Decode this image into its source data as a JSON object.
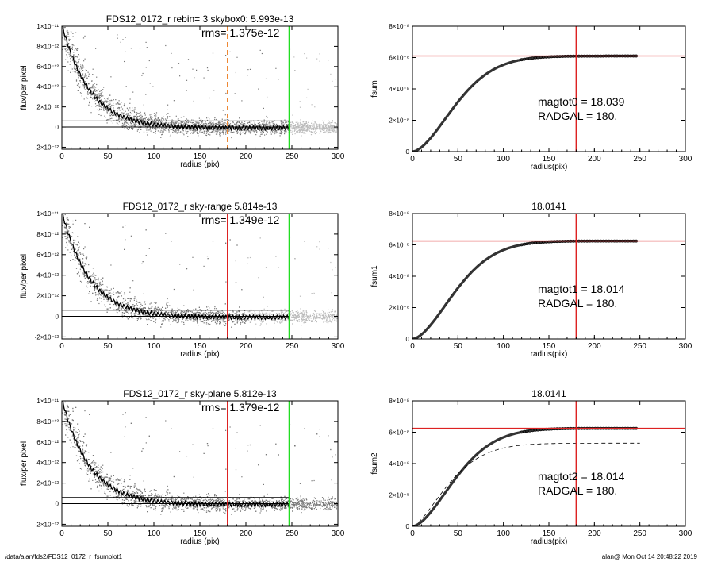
{
  "footer": {
    "left": "/data/alan/fds2/FDS12_0172_r_fsumplot1",
    "right": "alan@  Mon Oct 14 20:48:22 2019"
  },
  "colors": {
    "red": "#dd2222",
    "green": "#22dd22",
    "orange": "#ee8833",
    "points_dark": "#777777",
    "points_light": "#bbbbbb"
  },
  "chart_data": [
    {
      "type": "scatter",
      "title": "FDS12_0172_r rebin= 3    skybox0:  5.993e-13",
      "annotation": "rms= 1.375e-12",
      "xlabel": "radius (pix)",
      "ylabel": "flux/per pixel",
      "xlim": [
        0,
        300
      ],
      "ylim": [
        -2.2e-12,
        1e-11
      ],
      "xticks": [
        "0",
        "50",
        "100",
        "150",
        "200",
        "250",
        "300"
      ],
      "yticks": [
        {
          "v": -2e-12,
          "label": "-2×10⁻¹²"
        },
        {
          "v": 0,
          "label": "0"
        },
        {
          "v": 2e-12,
          "label": "2×10⁻¹²"
        },
        {
          "v": 4e-12,
          "label": "4×10⁻¹²"
        },
        {
          "v": 6e-12,
          "label": "6×10⁻¹²"
        },
        {
          "v": 8e-12,
          "label": "8×10⁻¹²"
        },
        {
          "v": 1e-11,
          "label": "1×10⁻¹¹"
        }
      ],
      "hlines": [
        0,
        6e-13
      ],
      "vlines": [
        {
          "x": 180,
          "color": "orange",
          "dash": true
        },
        {
          "x": 247,
          "color": "green",
          "dash": false
        }
      ],
      "profile": {
        "amplitude": 1.03e-11,
        "scale": 30,
        "offset": -1e-13,
        "x_end": 247
      },
      "point_cloud": {
        "inner_spread": 1.3e-12,
        "light_from": 247
      },
      "legend": "none",
      "grid": false
    },
    {
      "type": "line",
      "title": "",
      "annotations": [
        "magtot0 =  18.039",
        "RADGAL =    180."
      ],
      "xlabel": "radius(pix)",
      "ylabel": "fsum",
      "xlim": [
        0,
        300
      ],
      "ylim": [
        0,
        8e-08
      ],
      "xticks": [
        "0",
        "50",
        "100",
        "150",
        "200",
        "250",
        "300"
      ],
      "yticks": [
        {
          "v": 0,
          "label": "0"
        },
        {
          "v": 2e-08,
          "label": "2×10⁻⁸"
        },
        {
          "v": 4e-08,
          "label": "4×10⁻⁸"
        },
        {
          "v": 6e-08,
          "label": "6×10⁻⁸"
        },
        {
          "v": 8e-08,
          "label": "8×10⁻⁸"
        }
      ],
      "curve": {
        "asymptote": 6.1e-08,
        "scale": 60,
        "x_end": 247
      },
      "hline": 6.1e-08,
      "vline": 180,
      "legend": "none",
      "grid": false
    },
    {
      "type": "scatter",
      "title": "FDS12_0172_r sky-range  5.814e-13",
      "annotation": "rms= 1.349e-12",
      "xlabel": "radius (pix)",
      "ylabel": "flux/per pixel",
      "xlim": [
        0,
        300
      ],
      "ylim": [
        -2.2e-12,
        1e-11
      ],
      "xticks": [
        "0",
        "50",
        "100",
        "150",
        "200",
        "250",
        "300"
      ],
      "yticks": [
        {
          "v": -2e-12,
          "label": "-2×10⁻¹²"
        },
        {
          "v": 0,
          "label": "0"
        },
        {
          "v": 2e-12,
          "label": "2×10⁻¹²"
        },
        {
          "v": 4e-12,
          "label": "4×10⁻¹²"
        },
        {
          "v": 6e-12,
          "label": "6×10⁻¹²"
        },
        {
          "v": 8e-12,
          "label": "8×10⁻¹²"
        },
        {
          "v": 1e-11,
          "label": "1×10⁻¹¹"
        }
      ],
      "hlines": [
        0,
        6e-13
      ],
      "vlines": [
        {
          "x": 180,
          "color": "red",
          "dash": false
        },
        {
          "x": 247,
          "color": "green",
          "dash": false
        }
      ],
      "profile": {
        "amplitude": 1.03e-11,
        "scale": 30,
        "offset": -1e-13,
        "x_end": 247
      },
      "point_cloud": {
        "inner_spread": 1.3e-12,
        "light_from": 200
      },
      "legend": "none",
      "grid": false
    },
    {
      "type": "line",
      "title": "18.0141",
      "annotations": [
        "magtot1 =  18.014",
        "RADGAL =    180."
      ],
      "xlabel": "radius(pix)",
      "ylabel": "fsum1",
      "xlim": [
        0,
        300
      ],
      "ylim": [
        0,
        8e-08
      ],
      "xticks": [
        "0",
        "50",
        "100",
        "150",
        "200",
        "250",
        "300"
      ],
      "yticks": [
        {
          "v": 0,
          "label": "0"
        },
        {
          "v": 2e-08,
          "label": "2×10⁻⁸"
        },
        {
          "v": 4e-08,
          "label": "4×10⁻⁸"
        },
        {
          "v": 6e-08,
          "label": "6×10⁻⁸"
        },
        {
          "v": 8e-08,
          "label": "8×10⁻⁸"
        }
      ],
      "curve": {
        "asymptote": 6.25e-08,
        "scale": 60,
        "x_end": 247
      },
      "hline": 6.25e-08,
      "vline": 180,
      "legend": "none",
      "grid": false
    },
    {
      "type": "scatter",
      "title": "FDS12_0172_r sky-plane  5.812e-13",
      "annotation": "rms= 1.379e-12",
      "xlabel": "radius (pix)",
      "ylabel": "flux/per pixel",
      "xlim": [
        0,
        300
      ],
      "ylim": [
        -2.2e-12,
        1e-11
      ],
      "xticks": [
        "0",
        "50",
        "100",
        "150",
        "200",
        "250",
        "300"
      ],
      "yticks": [
        {
          "v": -2e-12,
          "label": "-2×10⁻¹²"
        },
        {
          "v": 0,
          "label": "0"
        },
        {
          "v": 2e-12,
          "label": "2×10⁻¹²"
        },
        {
          "v": 4e-12,
          "label": "4×10⁻¹²"
        },
        {
          "v": 6e-12,
          "label": "6×10⁻¹²"
        },
        {
          "v": 8e-12,
          "label": "8×10⁻¹²"
        },
        {
          "v": 1e-11,
          "label": "1×10⁻¹¹"
        }
      ],
      "hlines": [
        0,
        6e-13
      ],
      "vlines": [
        {
          "x": 180,
          "color": "red",
          "dash": false
        },
        {
          "x": 247,
          "color": "green",
          "dash": false
        }
      ],
      "profile": {
        "amplitude": 1.03e-11,
        "scale": 30,
        "offset": -1e-13,
        "x_end": 247
      },
      "point_cloud": {
        "inner_spread": 1.3e-12,
        "light_from": 400
      },
      "legend": "none",
      "grid": false
    },
    {
      "type": "line",
      "title": "18.0141",
      "annotations": [
        "magtot2 =  18.014",
        "RADGAL =    180."
      ],
      "xlabel": "radius(pix)",
      "ylabel": "fsum2",
      "xlim": [
        0,
        300
      ],
      "ylim": [
        0,
        8e-08
      ],
      "xticks": [
        "0",
        "50",
        "100",
        "150",
        "200",
        "250",
        "300"
      ],
      "yticks": [
        {
          "v": 0,
          "label": "0"
        },
        {
          "v": 2e-08,
          "label": "2×10⁻⁸"
        },
        {
          "v": 4e-08,
          "label": "4×10⁻⁸"
        },
        {
          "v": 6e-08,
          "label": "6×10⁻⁸"
        },
        {
          "v": 8e-08,
          "label": "8×10⁻⁸"
        }
      ],
      "curve": {
        "asymptote": 6.25e-08,
        "scale": 60,
        "x_end": 247
      },
      "dashed_curve": {
        "asymptote": 5.3e-08,
        "scale": 50,
        "x_end": 250
      },
      "hline": 6.25e-08,
      "vline": 180,
      "legend": "none",
      "grid": false
    }
  ]
}
